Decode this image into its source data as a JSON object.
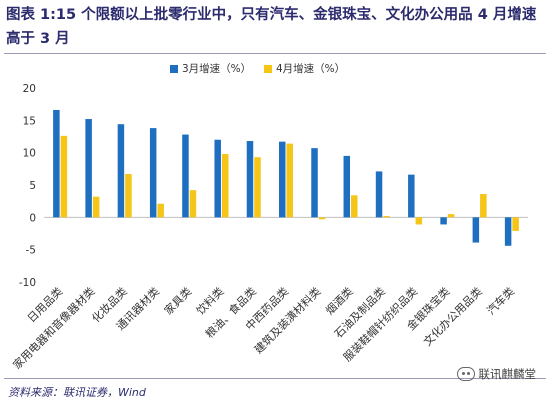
{
  "header": {
    "title": "图表 1:15 个限额以上批零行业中，只有汽车、金银珠宝、文化办公用品 4 月增速高于 3 月"
  },
  "footer": {
    "source": "资料来源：联讯证券，Wind",
    "watermark": "联讯麒麟堂"
  },
  "chart_data": {
    "type": "bar",
    "categories": [
      "日用品类",
      "家用电器和音像器材类",
      "化妆品类",
      "通讯器材类",
      "家具类",
      "饮料类",
      "粮油、食品类",
      "中西药品类",
      "建筑及装潢材料类",
      "烟酒类",
      "石油及制品类",
      "服装鞋帽针纺织品类",
      "金银珠宝类",
      "文化办公用品类",
      "汽车类"
    ],
    "series": [
      {
        "name": "3月增速（%）",
        "color": "#1f6fc1",
        "values": [
          16.6,
          15.2,
          14.4,
          13.8,
          12.8,
          12.0,
          11.8,
          11.7,
          10.7,
          9.5,
          7.1,
          6.6,
          -1.1,
          -3.9,
          -4.4
        ]
      },
      {
        "name": "4月增速（%）",
        "color": "#f5c518",
        "values": [
          12.6,
          3.2,
          6.7,
          2.1,
          4.2,
          9.8,
          9.3,
          11.4,
          -0.3,
          3.4,
          0.2,
          -1.1,
          0.5,
          3.6,
          -2.1
        ]
      }
    ],
    "yticks": [
      -10,
      -5,
      0,
      5,
      10,
      15,
      20
    ],
    "ylim": [
      -10,
      20
    ],
    "xlabel": "",
    "ylabel": "",
    "legend": "top-center",
    "grid": false
  }
}
